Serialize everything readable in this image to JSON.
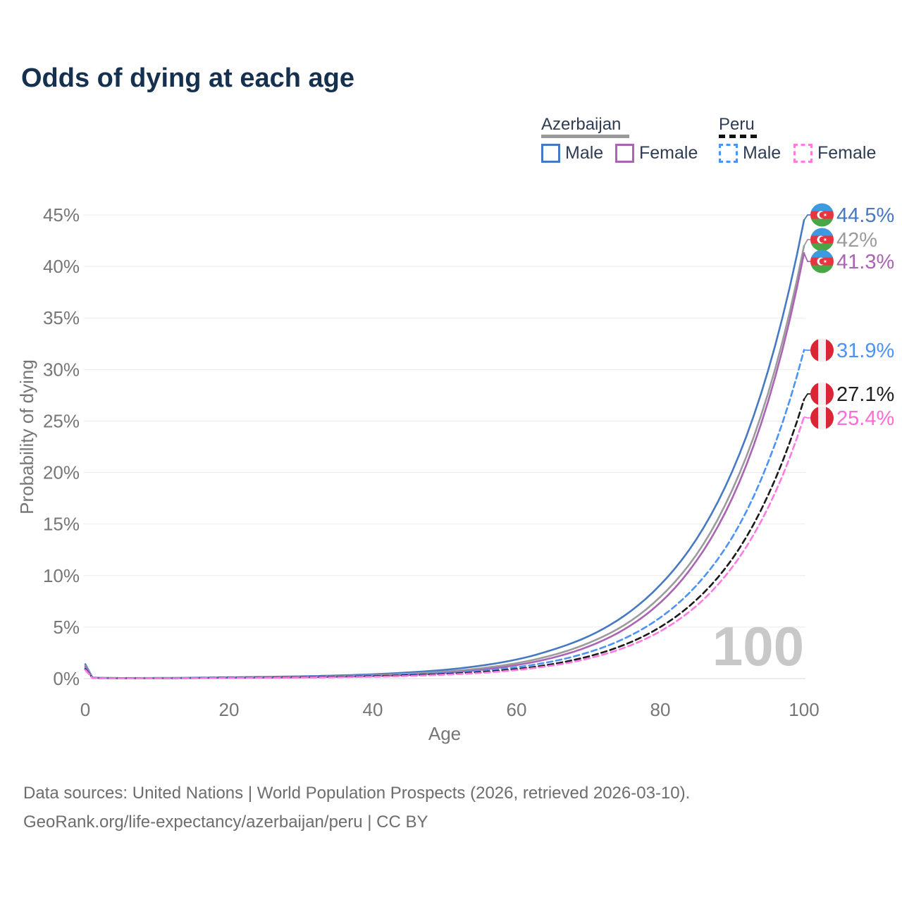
{
  "header": {
    "title": "Odds of dying at each age"
  },
  "legend": {
    "groups": [
      {
        "country": "Azerbaijan",
        "line_color": "#9a9a9a",
        "line_dashed": false,
        "items": [
          {
            "label": "Male",
            "color": "#4679c2",
            "dashed": false
          },
          {
            "label": "Female",
            "color": "#ab63b3",
            "dashed": false
          }
        ]
      },
      {
        "country": "Peru",
        "line_color": "#111111",
        "line_dashed": true,
        "items": [
          {
            "label": "Male",
            "color": "#4d92f5",
            "dashed": true
          },
          {
            "label": "Female",
            "color": "#ff7be2",
            "dashed": true
          }
        ]
      }
    ]
  },
  "chart_data": {
    "type": "line",
    "title": "Odds of dying at each age",
    "xlabel": "Age",
    "ylabel": "Probability of dying",
    "xlim": [
      0,
      100
    ],
    "ylim": [
      0,
      45
    ],
    "x_ticks": [
      "0",
      "20",
      "40",
      "60",
      "80",
      "100"
    ],
    "x_tick_values": [
      0,
      20,
      40,
      60,
      80,
      100
    ],
    "y_ticks": [
      "0%",
      "5%",
      "10%",
      "15%",
      "20%",
      "25%",
      "30%",
      "35%",
      "40%",
      "45%"
    ],
    "y_tick_values": [
      0,
      5,
      10,
      15,
      20,
      25,
      30,
      35,
      40,
      45
    ],
    "grid": "horizontal",
    "legend_position": "top-right",
    "watermark": "100",
    "x": [
      0,
      1,
      5,
      10,
      15,
      20,
      25,
      30,
      35,
      40,
      45,
      50,
      55,
      60,
      65,
      70,
      75,
      80,
      85,
      90,
      95,
      100
    ],
    "series": [
      {
        "name": "Azerbaijan Male",
        "country": "Azerbaijan",
        "sex": "Male",
        "flag": "az",
        "color": "#4679c2",
        "dashed": false,
        "end_value": 44.5,
        "end_label": "44.5%",
        "label_color": "#4679c2",
        "values": [
          1.4,
          0.1,
          0.05,
          0.06,
          0.09,
          0.13,
          0.17,
          0.22,
          0.3,
          0.42,
          0.6,
          0.85,
          1.25,
          1.85,
          2.8,
          4.1,
          6.1,
          9.1,
          13.5,
          20.1,
          29.9,
          44.5
        ]
      },
      {
        "name": "Azerbaijan Both sexes",
        "country": "Azerbaijan",
        "sex": "Both",
        "flag": "az",
        "color": "#9b9b9b",
        "dashed": false,
        "end_value": 42,
        "end_label": "42%",
        "label_color": "#9b9b9b",
        "values": [
          1.25,
          0.09,
          0.04,
          0.05,
          0.07,
          0.1,
          0.13,
          0.17,
          0.23,
          0.33,
          0.47,
          0.68,
          1.0,
          1.5,
          2.27,
          3.45,
          5.2,
          7.93,
          12.0,
          18.3,
          27.7,
          42.0
        ]
      },
      {
        "name": "Azerbaijan Female",
        "country": "Azerbaijan",
        "sex": "Female",
        "flag": "az",
        "color": "#ab63b3",
        "dashed": false,
        "end_value": 41.3,
        "end_label": "41.3%",
        "label_color": "#ab63b3",
        "values": [
          1.15,
          0.08,
          0.03,
          0.04,
          0.05,
          0.07,
          0.09,
          0.12,
          0.17,
          0.24,
          0.36,
          0.55,
          0.85,
          1.31,
          2.02,
          3.11,
          4.79,
          7.37,
          11.4,
          17.5,
          26.9,
          41.3
        ]
      },
      {
        "name": "Peru Male",
        "country": "Peru",
        "sex": "Male",
        "flag": "pe",
        "color": "#4d92f5",
        "dashed": true,
        "end_value": 31.9,
        "end_label": "31.9%",
        "label_color": "#4d92f5",
        "values": [
          1.0,
          0.07,
          0.03,
          0.04,
          0.06,
          0.09,
          0.12,
          0.15,
          0.2,
          0.28,
          0.4,
          0.55,
          0.75,
          1.1,
          1.67,
          2.55,
          3.89,
          5.92,
          9.02,
          13.7,
          21.0,
          31.9
        ]
      },
      {
        "name": "Peru Both sexes",
        "country": "Peru",
        "sex": "Both",
        "flag": "pe",
        "color": "#1a1a1a",
        "dashed": true,
        "end_value": 27.1,
        "end_label": "27.1%",
        "label_color": "#1f1f1f",
        "values": [
          0.92,
          0.06,
          0.025,
          0.035,
          0.05,
          0.08,
          0.1,
          0.13,
          0.17,
          0.23,
          0.32,
          0.45,
          0.63,
          0.92,
          1.41,
          2.15,
          3.28,
          5.0,
          7.63,
          11.6,
          17.8,
          27.1
        ]
      },
      {
        "name": "Peru Female",
        "country": "Peru",
        "sex": "Female",
        "flag": "pe",
        "color": "#ff7be2",
        "dashed": true,
        "end_value": 25.4,
        "end_label": "25.4%",
        "label_color": "#ff6bd8",
        "values": [
          0.85,
          0.05,
          0.02,
          0.03,
          0.04,
          0.06,
          0.08,
          0.1,
          0.13,
          0.18,
          0.26,
          0.38,
          0.55,
          0.83,
          1.27,
          1.95,
          3.0,
          4.59,
          7.04,
          10.8,
          16.6,
          25.4
        ]
      }
    ]
  },
  "footer": {
    "line1": "Data sources: United Nations | World Population Prospects (2026, retrieved 2026-03-10).",
    "line2": "GeoRank.org/life-expectancy/azerbaijan/peru | CC BY"
  }
}
